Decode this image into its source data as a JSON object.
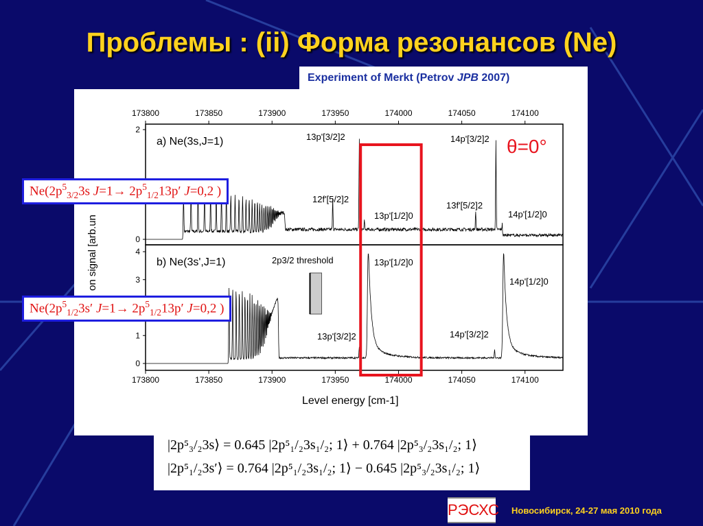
{
  "title": "Проблемы : (ii) Форма резонансов (Ne)",
  "experiment": {
    "prefix": "Experiment of Merkt (Petrov ",
    "journal": "JPB",
    "year": " 2007)"
  },
  "transitions": [
    {
      "a": "Ne(2p",
      "b": "5",
      "c": "3/2",
      "d": "3s ",
      "e": "J",
      "f": "=1→ 2p",
      "g": "5",
      "h": "1/2",
      "i": "13p′ ",
      "j": "J",
      "k": "=0,2 )"
    },
    {
      "a": "Ne(2p",
      "b": "5",
      "c": "1/2",
      "d": "3s′ ",
      "e": "J",
      "f": "=1→ 2p",
      "g": "5",
      "h": "1/2",
      "i": "13p′ ",
      "j": "J",
      "k": "=0,2 )"
    }
  ],
  "formula": [
    "|2p⁵₃/₂3s⟩ = 0.645 |2p⁵₁/₂3s₁/₂; 1⟩ + 0.764 |2p⁵₃/₂3s₁/₂; 1⟩",
    "|2p⁵₁/₂3s′⟩ = 0.764 |2p⁵₁/₂3s₁/₂; 1⟩ − 0.645 |2p⁵₃/₂3s₁/₂; 1⟩"
  ],
  "logo": "РЭСХС",
  "footer": "Новосибирск, 24-27 мая 2010 года",
  "colors": {
    "background": "#0a0a6a",
    "title": "#ffd21e",
    "highlight": "#e8141e",
    "box_border": "#1e1ee0"
  },
  "chart_data": {
    "type": "line",
    "xlabel": "Level energy [cm-1]",
    "ylabel": "on signal [arb.un",
    "xlim": [
      173800,
      174130
    ],
    "xticks": [
      173800,
      173850,
      173900,
      173950,
      174000,
      174050,
      174100
    ],
    "highlight_range": [
      173970,
      174018
    ],
    "theta_label": "θ=0°",
    "panels": [
      {
        "label": "a)  Ne(3s,J=1)",
        "ylim": [
          0,
          2
        ],
        "yticks": [
          0,
          2
        ],
        "series_start": 173830,
        "series_end": 173910,
        "series_height": 0.8,
        "peaks": [
          {
            "x": 173948,
            "y": 0.55,
            "label": "12f'[5/2]2"
          },
          {
            "x": 173969,
            "y": 1.65,
            "label": "13p'[3/2]2"
          },
          {
            "x": 173973,
            "y": 0.15,
            "label": "13p'[1/2]0"
          },
          {
            "x": 174061,
            "y": 0.35,
            "label": "13f'[5/2]2"
          },
          {
            "x": 174077,
            "y": 1.6,
            "label": "14p'[3/2]2"
          },
          {
            "x": 174082,
            "y": 0.1,
            "label": "14p'[1/2]0"
          }
        ]
      },
      {
        "label": "b)  Ne(3s',J=1)",
        "ylim": [
          0,
          4
        ],
        "yticks": [
          0,
          1,
          3,
          4
        ],
        "series_start": 173866,
        "series_end": 173905,
        "series_height": 2.7,
        "threshold_label": "2p3/2 threshold",
        "threshold_x": 173930,
        "peaks": [
          {
            "x": 173969,
            "y": 0.4,
            "label": "13p'[3/2]2"
          },
          {
            "x": 173976,
            "y": 3.8,
            "label": "13p'[1/2]0"
          },
          {
            "x": 174076,
            "y": 0.3,
            "label": "14p'[3/2]2"
          },
          {
            "x": 174083,
            "y": 3.6,
            "label": "14p'[1/2]0"
          }
        ]
      }
    ]
  }
}
